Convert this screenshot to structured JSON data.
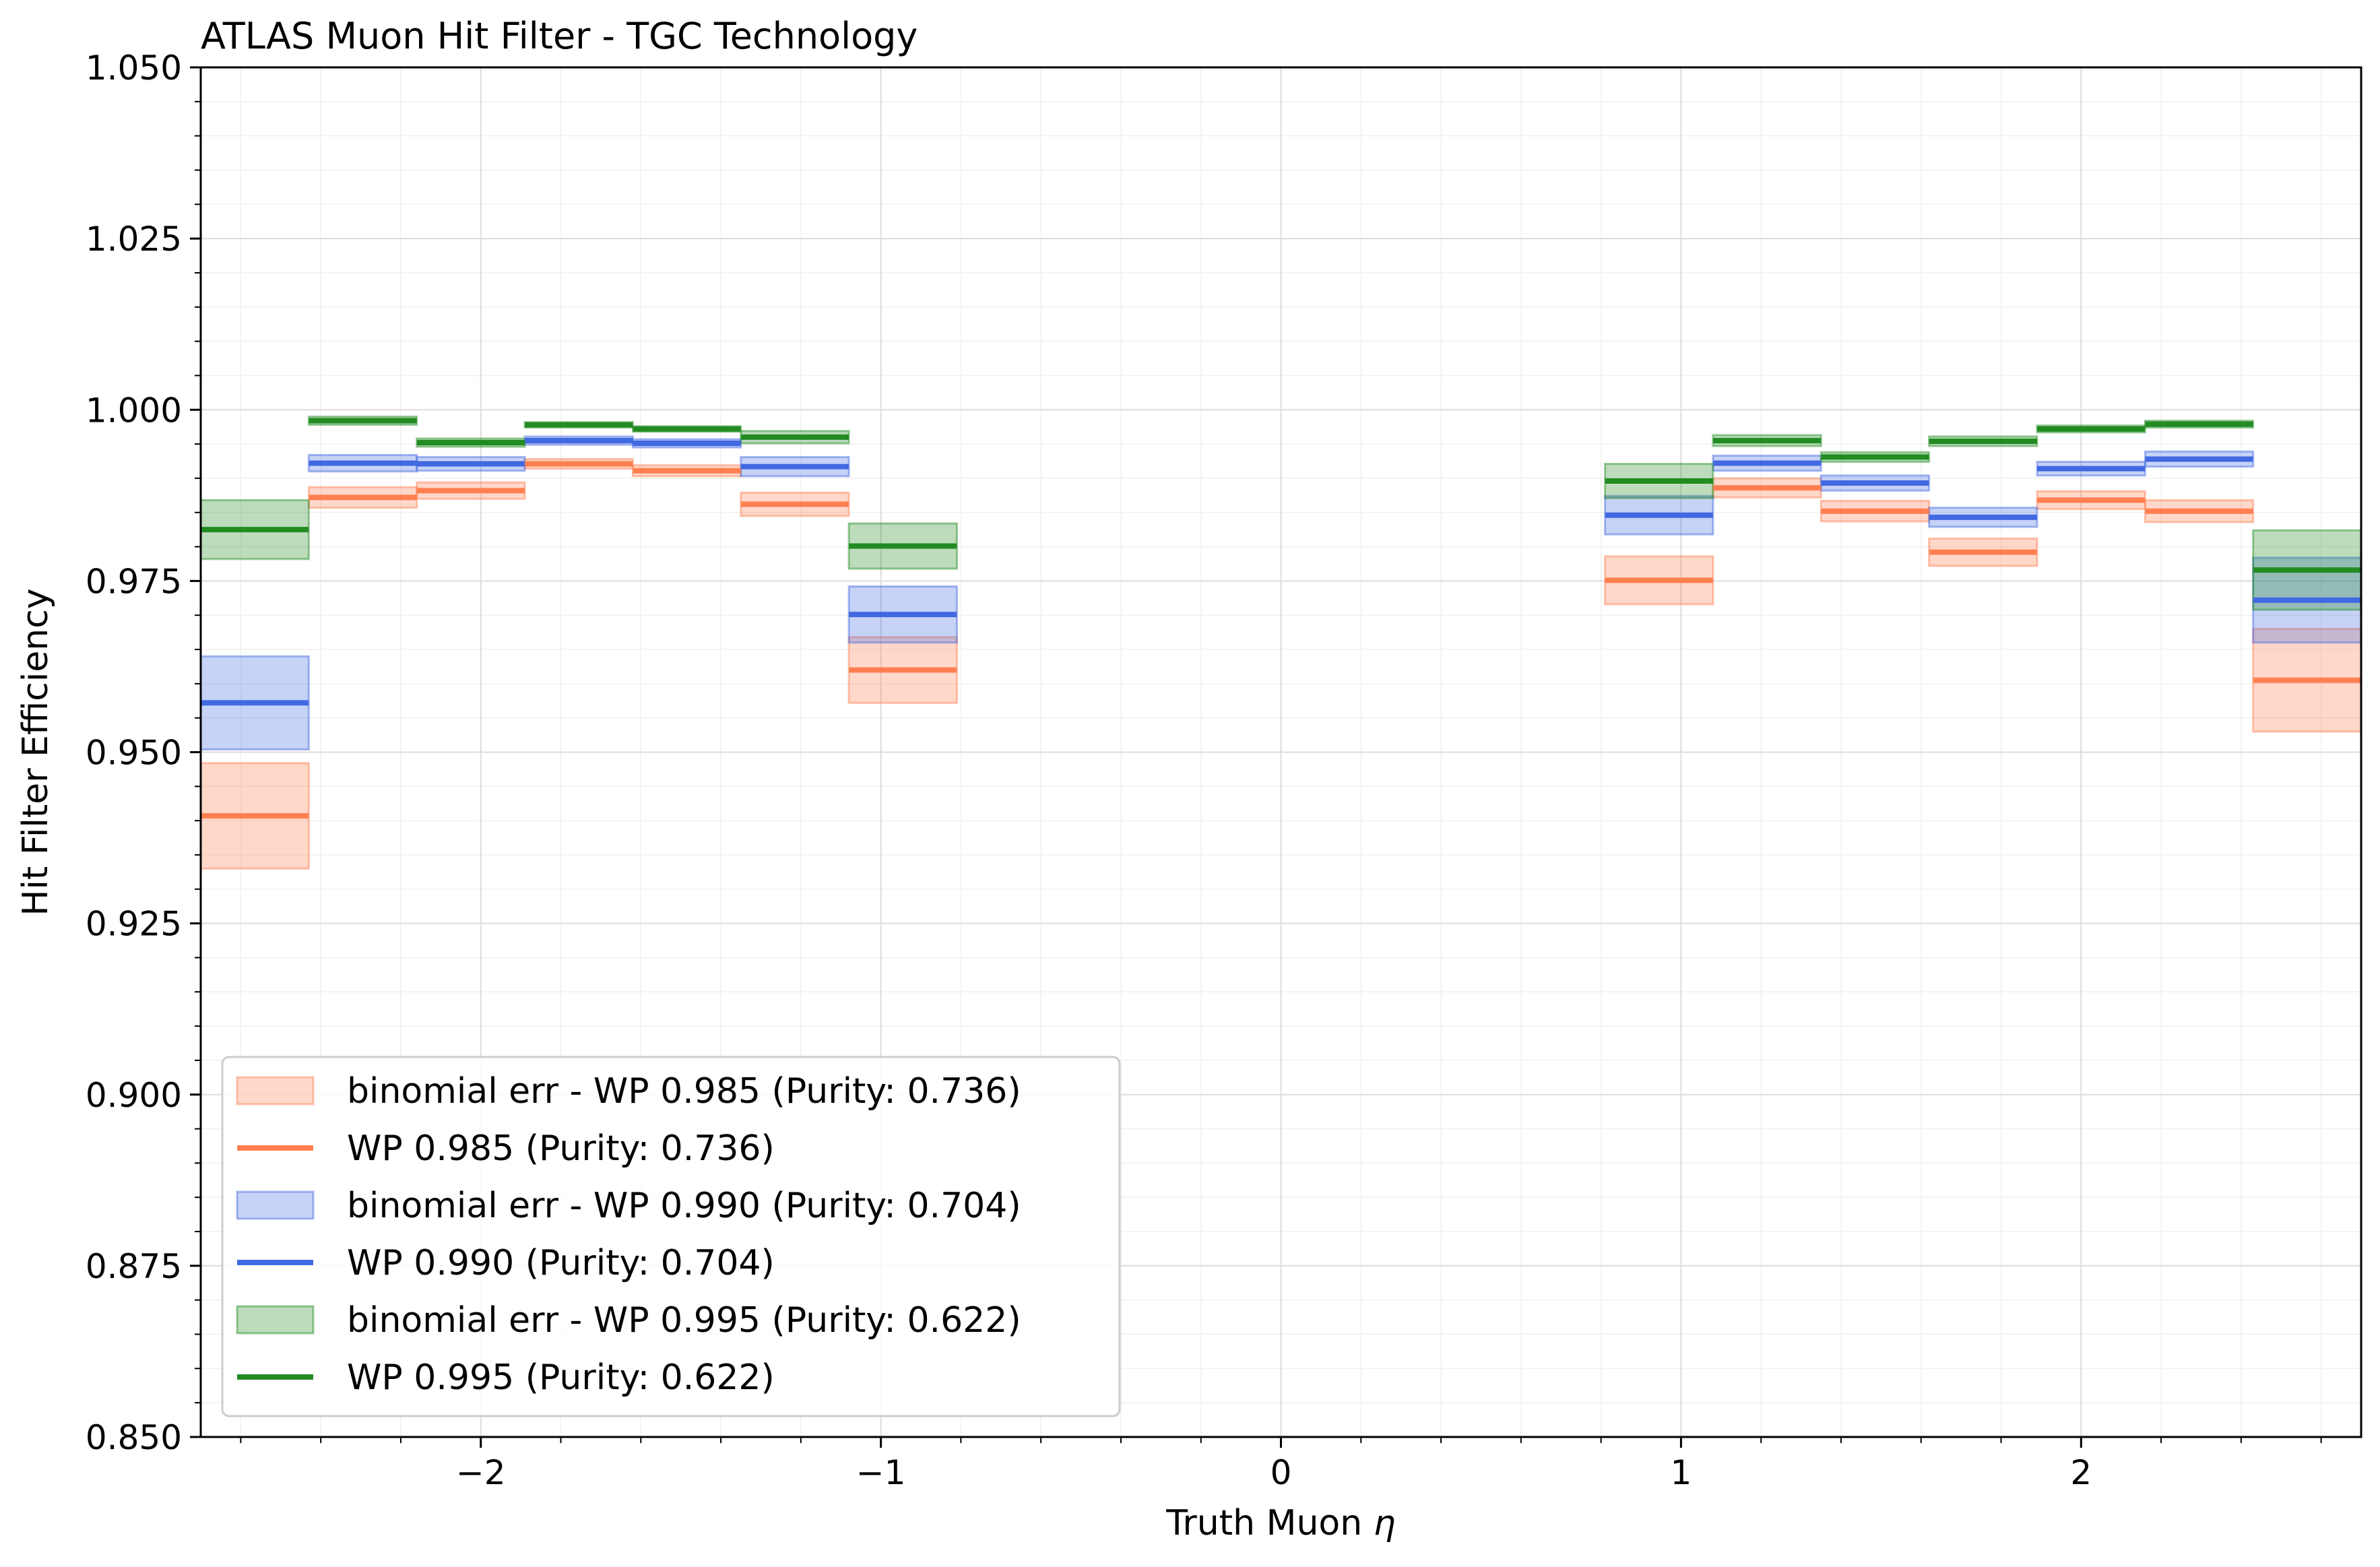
{
  "chart_data": {
    "type": "step",
    "title": "ATLAS Muon Hit Filter - TGC Technology",
    "xlabel": "Truth Muon",
    "xlabel_symbol": "η",
    "ylabel": "Hit Filter Efficiency",
    "xlim": [
      -2.7,
      2.7
    ],
    "ylim": [
      0.85,
      1.05
    ],
    "xticks": [
      -2,
      -1,
      0,
      1,
      2
    ],
    "xtick_labels": [
      "−2",
      "−1",
      "0",
      "1",
      "2"
    ],
    "yticks": [
      0.85,
      0.875,
      0.9,
      0.925,
      0.95,
      0.975,
      1.0,
      1.025,
      1.05
    ],
    "ytick_labels": [
      "0.850",
      "0.875",
      "0.900",
      "0.925",
      "0.950",
      "0.975",
      "1.000",
      "1.025",
      "1.050"
    ],
    "grid": true,
    "legend_position": "lower-left",
    "bins": [
      [
        -2.7,
        -2.43
      ],
      [
        -2.43,
        -2.16
      ],
      [
        -2.16,
        -1.89
      ],
      [
        -1.89,
        -1.62
      ],
      [
        -1.62,
        -1.35
      ],
      [
        -1.35,
        -1.08
      ],
      [
        -1.08,
        -0.81
      ],
      [
        0.81,
        1.08
      ],
      [
        1.08,
        1.35
      ],
      [
        1.35,
        1.62
      ],
      [
        1.62,
        1.89
      ],
      [
        1.89,
        2.16
      ],
      [
        2.16,
        2.43
      ],
      [
        2.43,
        2.7
      ]
    ],
    "series": [
      {
        "name": "WP 0.985 (Purity: 0.736)",
        "band_name": "binomial err - WP 0.985 (Purity: 0.736)",
        "color": "#ff7f50",
        "values": [
          0.9407,
          0.9872,
          0.9882,
          0.9921,
          0.9911,
          0.9862,
          0.962,
          0.9751,
          0.9886,
          0.9852,
          0.9792,
          0.9868,
          0.9852,
          0.9605
        ],
        "err_low": [
          0.0077,
          0.0015,
          0.0012,
          0.0007,
          0.0008,
          0.0017,
          0.0048,
          0.0035,
          0.0014,
          0.0015,
          0.002,
          0.0013,
          0.0016,
          0.0075
        ],
        "err_high": [
          0.0077,
          0.0015,
          0.0012,
          0.0007,
          0.0008,
          0.0017,
          0.0048,
          0.0035,
          0.0014,
          0.0015,
          0.002,
          0.0013,
          0.0016,
          0.0075
        ]
      },
      {
        "name": "WP 0.990 (Purity: 0.704)",
        "band_name": "binomial err - WP 0.990 (Purity: 0.704)",
        "color": "#4169e1",
        "values": [
          0.9572,
          0.9922,
          0.9921,
          0.9955,
          0.9951,
          0.9917,
          0.9701,
          0.9846,
          0.9922,
          0.9893,
          0.9843,
          0.9914,
          0.9928,
          0.9722
        ],
        "err_low": [
          0.0068,
          0.0012,
          0.001,
          0.0006,
          0.0006,
          0.0014,
          0.0041,
          0.0028,
          0.0011,
          0.0011,
          0.0014,
          0.001,
          0.0011,
          0.0062
        ],
        "err_high": [
          0.0068,
          0.0012,
          0.001,
          0.0006,
          0.0006,
          0.0014,
          0.0041,
          0.0028,
          0.0011,
          0.0011,
          0.0014,
          0.001,
          0.0011,
          0.0062
        ]
      },
      {
        "name": "WP 0.995 (Purity: 0.622)",
        "band_name": "binomial err - WP 0.995 (Purity: 0.622)",
        "color": "#228b22",
        "values": [
          0.9825,
          0.9984,
          0.9952,
          0.9978,
          0.9972,
          0.996,
          0.9801,
          0.9896,
          0.9955,
          0.9931,
          0.9954,
          0.9972,
          0.9979,
          0.9766
        ],
        "err_low": [
          0.0043,
          0.0006,
          0.0006,
          0.0004,
          0.0004,
          0.0009,
          0.0033,
          0.0025,
          0.0008,
          0.0007,
          0.0007,
          0.0005,
          0.0005,
          0.0058
        ],
        "err_high": [
          0.0043,
          0.0006,
          0.0006,
          0.0004,
          0.0004,
          0.0009,
          0.0033,
          0.0025,
          0.0008,
          0.0007,
          0.0007,
          0.0005,
          0.0005,
          0.0058
        ]
      }
    ]
  }
}
